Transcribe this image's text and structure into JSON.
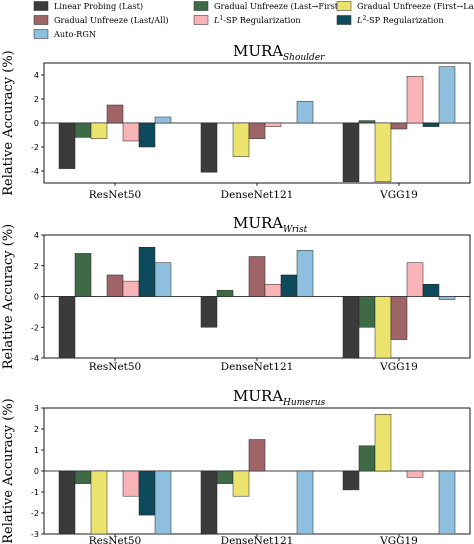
{
  "legend": [
    {
      "key": "lpl",
      "label": "Linear Probing (Last)",
      "color": "#3b3b3b"
    },
    {
      "key": "gu_lf",
      "label": "Gradual Unfreeze (Last→First)",
      "color": "#3e6b46"
    },
    {
      "key": "gu_fl",
      "label": "Gradual Unfreeze (First→Last)",
      "color": "#ece36f"
    },
    {
      "key": "gu_la",
      "label": "Gradual Unfreeze (Last/All)",
      "color": "#9e6468"
    },
    {
      "key": "l1sp",
      "label": "L1-SP Regularization",
      "label_parts": [
        "L",
        "1",
        "-SP Regularization"
      ],
      "color": "#f7b3b6"
    },
    {
      "key": "l2sp",
      "label": "L2-SP Regularization",
      "label_parts": [
        "L",
        "2",
        "-SP Regularization"
      ],
      "color": "#0d4a5c"
    },
    {
      "key": "autorgn",
      "label": "Auto-RGN",
      "color": "#8fbfdf"
    }
  ],
  "chart_data": [
    {
      "type": "bar",
      "title": "MURA",
      "subtitle": "Shoulder",
      "ylabel": "Relative Accuracy (%)",
      "ylim": [
        -5,
        5
      ],
      "yticks": [
        -4,
        -2,
        0,
        2,
        4
      ],
      "categories": [
        "ResNet50",
        "DenseNet121",
        "VGG19"
      ],
      "series": [
        {
          "name": "Linear Probing (Last)",
          "values": [
            -3.8,
            -4.1,
            -4.9
          ]
        },
        {
          "name": "Gradual Unfreeze (Last→First)",
          "values": [
            -1.2,
            0.0,
            0.2
          ]
        },
        {
          "name": "Gradual Unfreeze (First→Last)",
          "values": [
            -1.3,
            -2.8,
            -4.9
          ]
        },
        {
          "name": "Gradual Unfreeze (Last/All)",
          "values": [
            1.5,
            -1.3,
            -0.5
          ]
        },
        {
          "name": "L1-SP Regularization",
          "values": [
            -1.5,
            -0.3,
            3.9
          ]
        },
        {
          "name": "L2-SP Regularization",
          "values": [
            -2.0,
            0.0,
            -0.3
          ]
        },
        {
          "name": "Auto-RGN",
          "values": [
            0.5,
            1.8,
            4.7
          ]
        }
      ]
    },
    {
      "type": "bar",
      "title": "MURA",
      "subtitle": "Wrist",
      "ylabel": "Relative Accuracy (%)",
      "ylim": [
        -4,
        4
      ],
      "yticks": [
        -4,
        -2,
        0,
        2,
        4
      ],
      "categories": [
        "ResNet50",
        "DenseNet121",
        "VGG19"
      ],
      "series": [
        {
          "name": "Linear Probing (Last)",
          "values": [
            -4.0,
            -2.0,
            -4.0
          ]
        },
        {
          "name": "Gradual Unfreeze (Last→First)",
          "values": [
            2.8,
            0.4,
            -2.0
          ]
        },
        {
          "name": "Gradual Unfreeze (First→Last)",
          "values": [
            0.0,
            0.0,
            -4.0
          ]
        },
        {
          "name": "Gradual Unfreeze (Last/All)",
          "values": [
            1.4,
            2.6,
            -2.8
          ]
        },
        {
          "name": "L1-SP Regularization",
          "values": [
            1.0,
            0.8,
            2.2
          ]
        },
        {
          "name": "L2-SP Regularization",
          "values": [
            3.2,
            1.4,
            0.8
          ]
        },
        {
          "name": "Auto-RGN",
          "values": [
            2.2,
            3.0,
            -0.2
          ]
        }
      ]
    },
    {
      "type": "bar",
      "title": "MURA",
      "subtitle": "Humerus",
      "ylabel": "Relative Accuracy (%)",
      "ylim": [
        -3,
        3
      ],
      "yticks": [
        -3,
        -2,
        -1,
        0,
        1,
        2,
        3
      ],
      "categories": [
        "ResNet50",
        "DenseNet121",
        "VGG19"
      ],
      "series": [
        {
          "name": "Linear Probing (Last)",
          "values": [
            -3.0,
            -3.0,
            -0.9
          ]
        },
        {
          "name": "Gradual Unfreeze (Last→First)",
          "values": [
            -0.6,
            -0.6,
            1.2
          ]
        },
        {
          "name": "Gradual Unfreeze (First→Last)",
          "values": [
            -3.0,
            -1.2,
            2.7
          ]
        },
        {
          "name": "Gradual Unfreeze (Last/All)",
          "values": [
            0.0,
            1.5,
            0.0
          ]
        },
        {
          "name": "L1-SP Regularization",
          "values": [
            -1.2,
            0.0,
            -0.3
          ]
        },
        {
          "name": "L2-SP Regularization",
          "values": [
            -2.1,
            0.0,
            0.0
          ]
        },
        {
          "name": "Auto-RGN",
          "values": [
            -3.0,
            -3.0,
            -3.0
          ]
        }
      ]
    }
  ]
}
